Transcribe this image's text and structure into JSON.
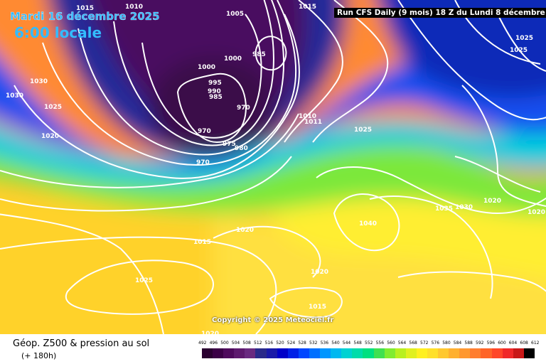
{
  "title": {
    "date": "Mardi 16 décembre 2025",
    "local_time": "6:00 locale",
    "run": "Run CFS Daily (9 mois) 18 Z du Lundi 8 décembre 2025"
  },
  "copyright": "Copyright © 2025 Meteociel.fr",
  "footer": {
    "title": "Géop. Z500 & pression au sol",
    "subtitle": "(+ 180h)"
  },
  "isobar_labels": [
    "1015",
    "1010",
    "1005",
    "1015",
    "985",
    "1000",
    "1000",
    "995",
    "990",
    "985",
    "970",
    "970",
    "975",
    "980",
    "970",
    "1010",
    "1011",
    "1025",
    "1030",
    "1030",
    "1025",
    "1020",
    "1015",
    "1020",
    "1025",
    "1040",
    "1035",
    "1030",
    "1020",
    "1020",
    "1020",
    "1015",
    "1020",
    "1025",
    "1025",
    "1015"
  ],
  "legend": {
    "values": [
      "492",
      "496",
      "500",
      "504",
      "508",
      "512",
      "516",
      "520",
      "524",
      "528",
      "532",
      "536",
      "540",
      "544",
      "548",
      "552",
      "556",
      "560",
      "564",
      "568",
      "572",
      "576",
      "580",
      "584",
      "588",
      "592",
      "596",
      "600",
      "604",
      "608",
      "612"
    ],
    "colors": [
      "#2a0030",
      "#3b0046",
      "#4e0a5c",
      "#5e1a6e",
      "#6a2a80",
      "#2a2a8a",
      "#1a1aa8",
      "#0000c8",
      "#0020e6",
      "#0046ff",
      "#0070ff",
      "#0096ff",
      "#00b8f0",
      "#00d2d2",
      "#00dcaa",
      "#00e080",
      "#40e050",
      "#80ec30",
      "#b8f020",
      "#e0f020",
      "#fff020",
      "#ffe02a",
      "#ffc830",
      "#ffb030",
      "#ff9830",
      "#ff7e30",
      "#ff6428",
      "#ff4628",
      "#f02828",
      "#c81818",
      "#000000"
    ]
  },
  "colors": {
    "title_accent": "#33bbff",
    "isobar": "#ffffff"
  }
}
